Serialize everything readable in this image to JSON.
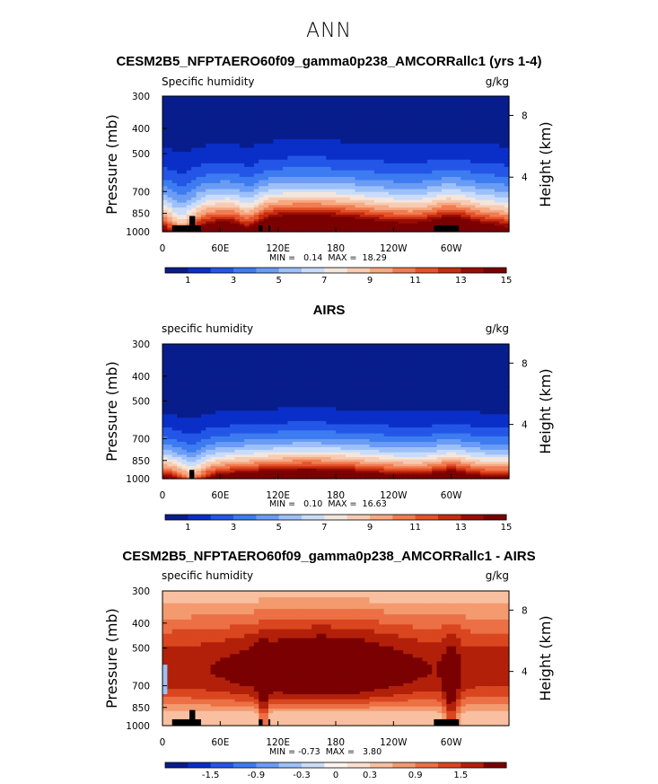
{
  "figure": {
    "title": "ANN"
  },
  "colors": {
    "abs_scale": [
      "#081d8c",
      "#0a2fc8",
      "#2356e6",
      "#3d7cf0",
      "#6a9cf5",
      "#9dc0f8",
      "#c9dcfb",
      "#f3e6dd",
      "#f8cbb2",
      "#f6a982",
      "#f17c52",
      "#e5522a",
      "#c62d0f",
      "#990d05",
      "#7a0102"
    ],
    "diff_scale": [
      "#081d8c",
      "#0a2fc8",
      "#2356e6",
      "#3d7cf0",
      "#6a9cf5",
      "#9dc0f8",
      "#c9dcfb",
      "#fff4ee",
      "#fde0cf",
      "#f8c0a0",
      "#f39a6f",
      "#ec7045",
      "#d9461f",
      "#b2200a",
      "#7a0102"
    ]
  },
  "chart_data": [
    {
      "type": "heatmap",
      "title": "CESM2B5_NFPTAERO60f09_gamma0p238_AMCORRallc1 (yrs 1-4)",
      "variable": "Specific humidity",
      "units": "g/kg",
      "xlabel": "",
      "ylabel": "Pressure (mb)",
      "ylabel_right": "Height (km)",
      "x_ticks": [
        "0",
        "60E",
        "120E",
        "180",
        "120W",
        "60W"
      ],
      "x_tick_values": [
        0,
        60,
        120,
        180,
        240,
        300
      ],
      "xlim": [
        0,
        360
      ],
      "y_ticks": [
        "300",
        "400",
        "500",
        "700",
        "850",
        "1000"
      ],
      "y_tick_values": [
        300,
        400,
        500,
        700,
        850,
        1000
      ],
      "ylim": [
        1000,
        300
      ],
      "right_ticks": [
        "8",
        "4"
      ],
      "right_tick_values": [
        356,
        616
      ],
      "min_text": "MIN =   0.14  MAX =  18.29",
      "colorbar_labels": [
        "1",
        "3",
        "5",
        "7",
        "9",
        "11",
        "13",
        "15"
      ],
      "colorbar_levels": [
        0,
        1,
        2,
        3,
        4,
        5,
        6,
        7,
        8,
        9,
        10,
        11,
        12,
        13,
        14,
        15,
        16
      ],
      "field": "model"
    },
    {
      "type": "heatmap",
      "title": "AIRS",
      "variable": "specific humidity",
      "units": "g/kg",
      "xlabel": "",
      "ylabel": "Pressure (mb)",
      "ylabel_right": "Height (km)",
      "x_ticks": [
        "0",
        "60E",
        "120E",
        "180",
        "120W",
        "60W"
      ],
      "x_tick_values": [
        0,
        60,
        120,
        180,
        240,
        300
      ],
      "xlim": [
        0,
        360
      ],
      "y_ticks": [
        "300",
        "400",
        "500",
        "700",
        "850",
        "1000"
      ],
      "y_tick_values": [
        300,
        400,
        500,
        700,
        850,
        1000
      ],
      "ylim": [
        1000,
        300
      ],
      "right_ticks": [
        "8",
        "4"
      ],
      "right_tick_values": [
        356,
        616
      ],
      "min_text": "MIN =   0.10  MAX =  16.63",
      "colorbar_labels": [
        "1",
        "3",
        "5",
        "7",
        "9",
        "11",
        "13",
        "15"
      ],
      "colorbar_levels": [
        0,
        1,
        2,
        3,
        4,
        5,
        6,
        7,
        8,
        9,
        10,
        11,
        12,
        13,
        14,
        15,
        16
      ],
      "field": "obs"
    },
    {
      "type": "heatmap",
      "title": "CESM2B5_NFPTAERO60f09_gamma0p238_AMCORRallc1 - AIRS",
      "variable": "specific humidity",
      "units": "g/kg",
      "xlabel": "",
      "ylabel": "Pressure (mb)",
      "ylabel_right": "Height (km)",
      "x_ticks": [
        "0",
        "60E",
        "120E",
        "180",
        "120W",
        "60W"
      ],
      "x_tick_values": [
        0,
        60,
        120,
        180,
        240,
        300
      ],
      "xlim": [
        0,
        360
      ],
      "y_ticks": [
        "300",
        "400",
        "500",
        "700",
        "850",
        "1000"
      ],
      "y_tick_values": [
        300,
        400,
        500,
        700,
        850,
        1000
      ],
      "ylim": [
        1000,
        300
      ],
      "right_ticks": [
        "8",
        "4"
      ],
      "right_tick_values": [
        356,
        616
      ],
      "min_text": "MIN = -0.73  MAX =   3.80",
      "colorbar_labels": [
        "-1.5",
        "-0.9",
        "-0.3",
        "0",
        "0.3",
        "0.9",
        "1.5"
      ],
      "colorbar_levels": [
        -2.1,
        -1.8,
        -1.5,
        -1.2,
        -0.9,
        -0.6,
        -0.3,
        -0.1,
        0.1,
        0.3,
        0.6,
        0.9,
        1.2,
        1.5,
        1.8,
        2.1
      ],
      "field": "diff"
    }
  ]
}
